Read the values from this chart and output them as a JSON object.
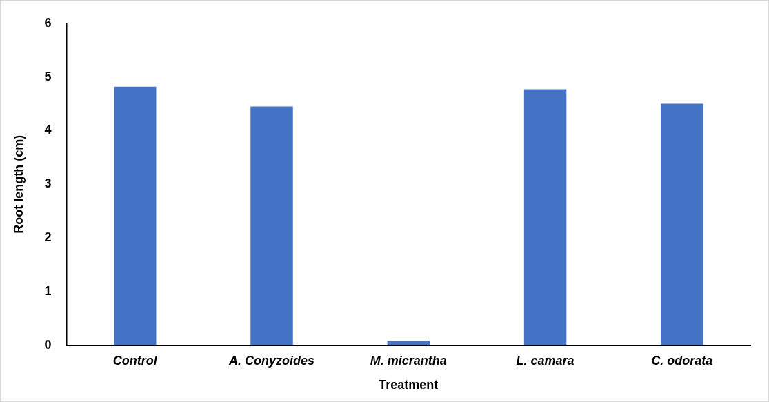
{
  "chart_data": {
    "type": "bar",
    "xlabel": "Treatment",
    "ylabel": "Root length (cm)",
    "categories": [
      "Control",
      "A. Conyzoides",
      "M. micrantha",
      "L. camara",
      "C. odorata"
    ],
    "values": [
      4.82,
      4.45,
      0.08,
      4.77,
      4.5
    ],
    "color": "#4472c4",
    "ylim": [
      0,
      6
    ],
    "yticks": [
      0,
      1,
      2,
      3,
      4,
      5,
      6
    ],
    "grid": false,
    "legend": false
  }
}
